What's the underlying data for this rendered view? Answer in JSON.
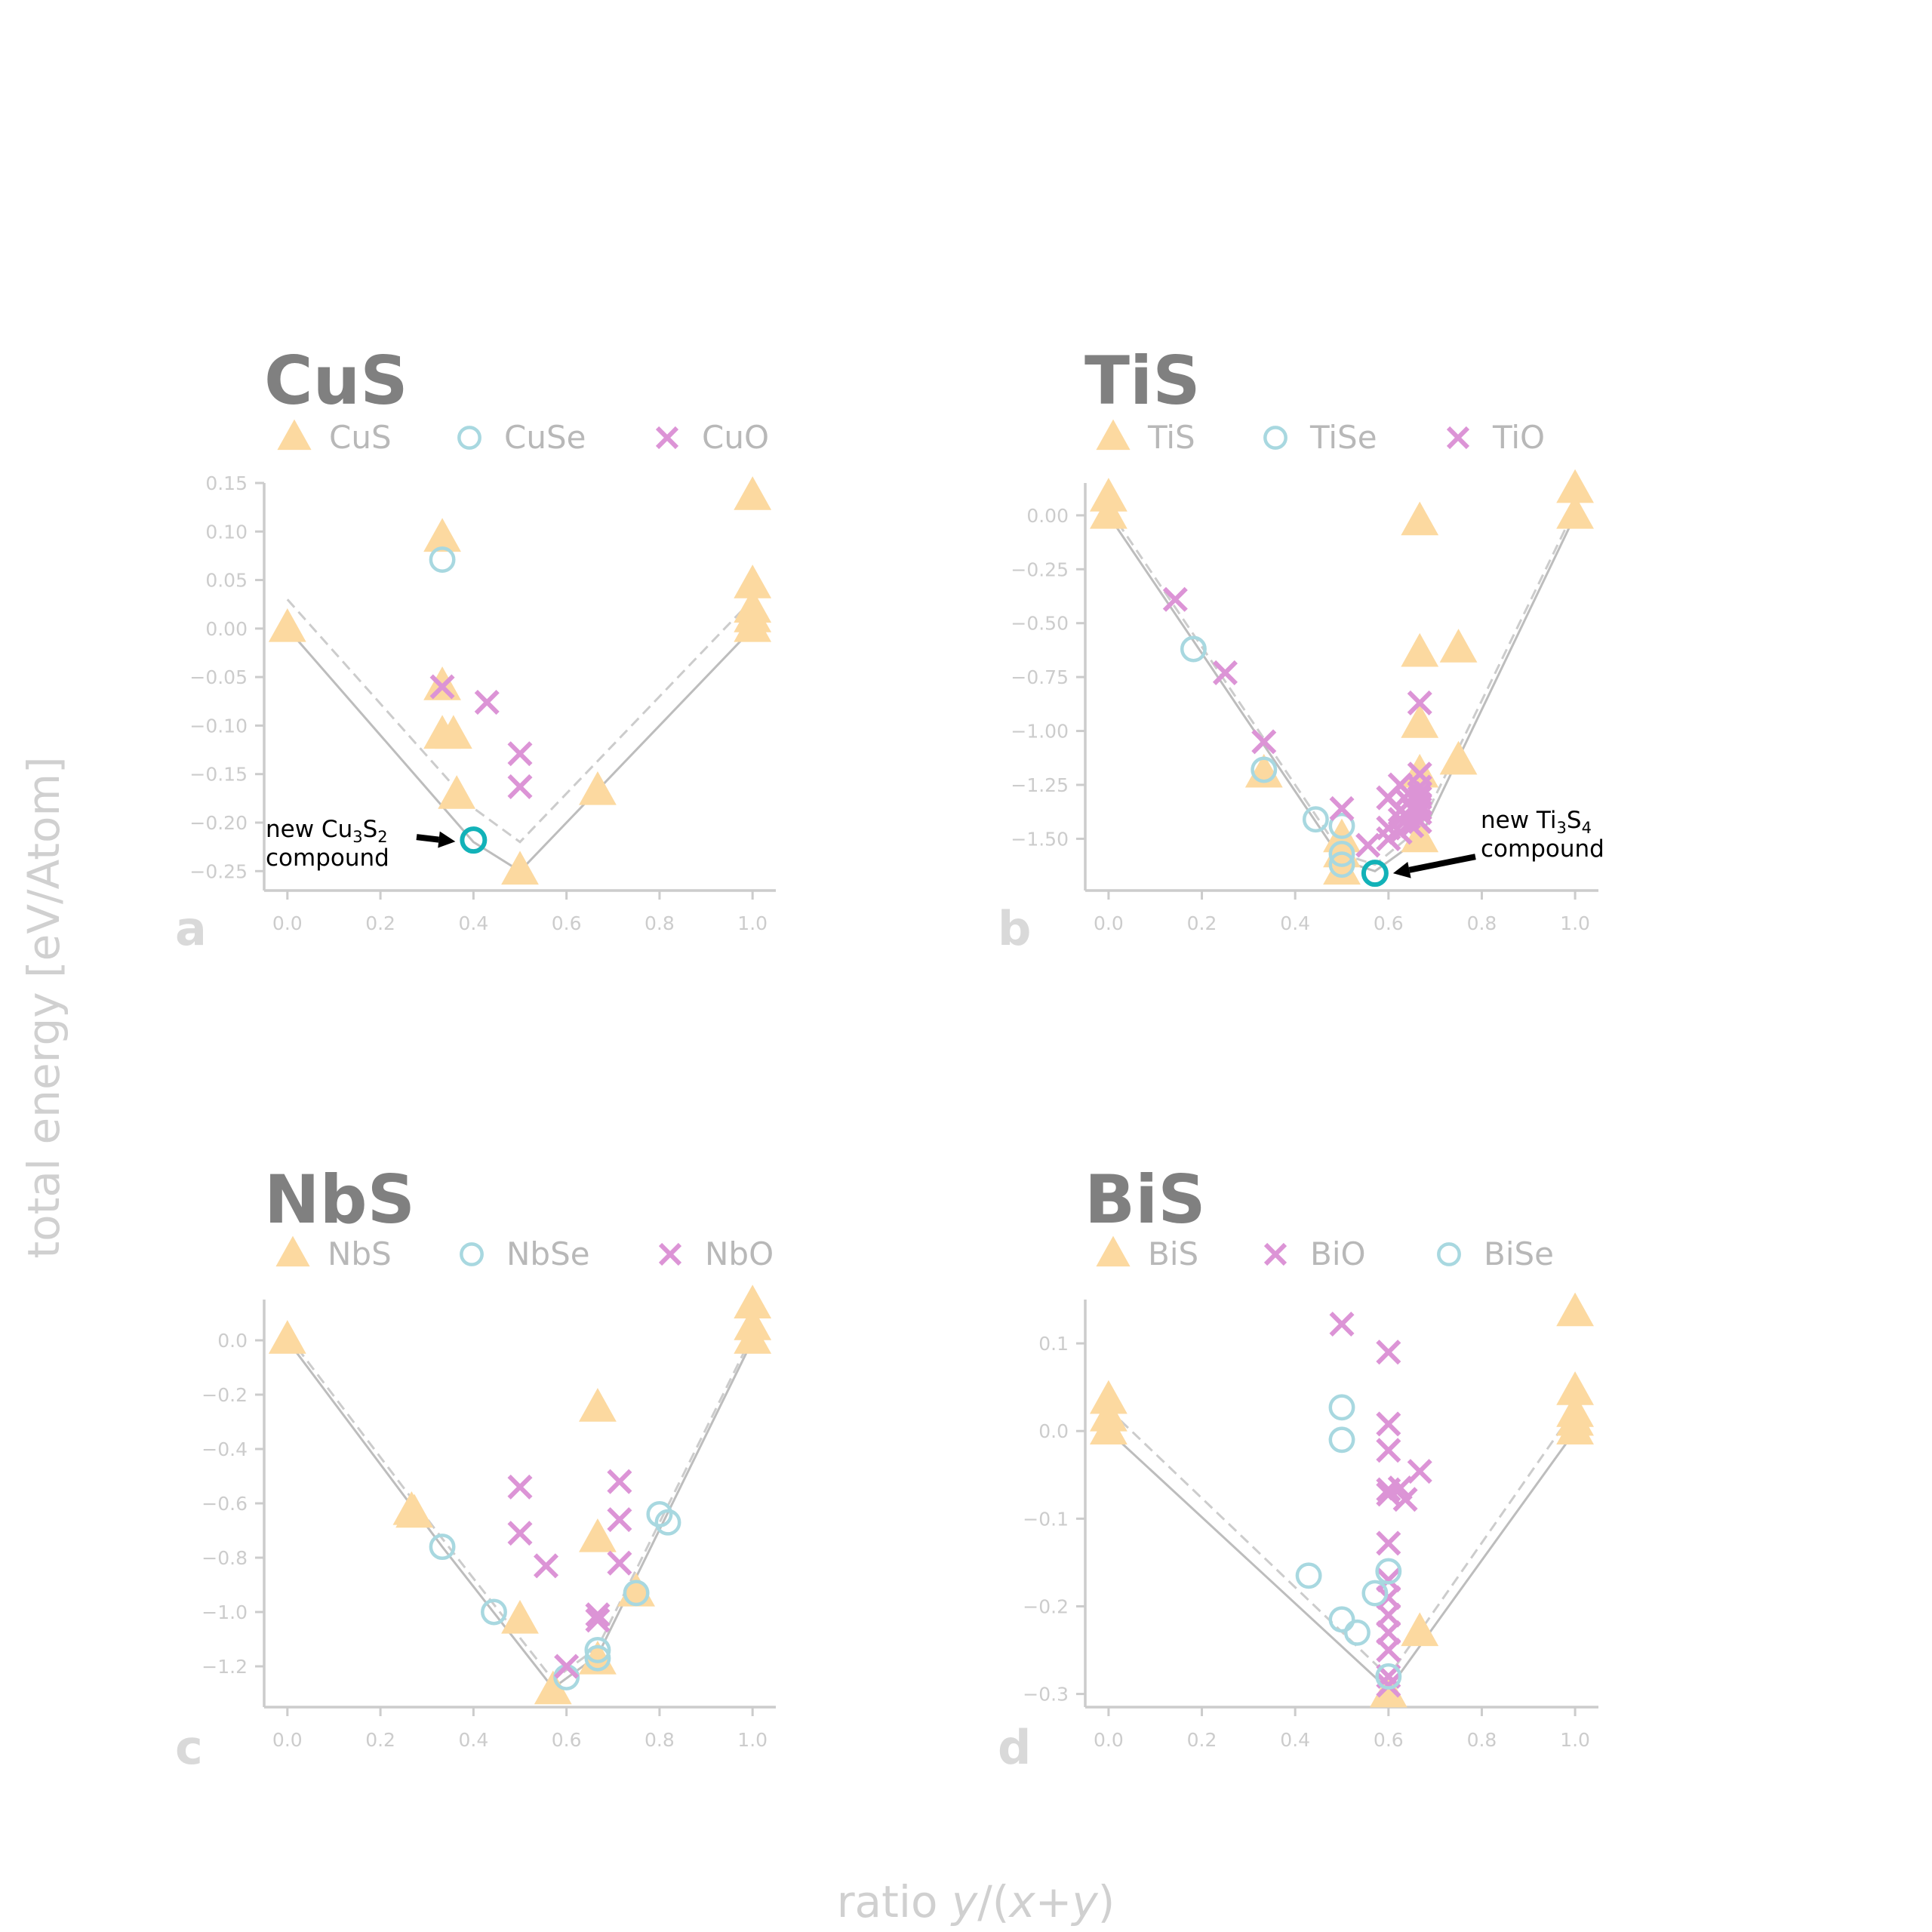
{
  "figure": {
    "ylabel": "total energy [eV/Atom]",
    "xlabel_parts": [
      "ratio ",
      "y",
      "/(",
      "x",
      "+",
      "y",
      ")"
    ]
  },
  "colors": {
    "triangle": "#fcd9a0",
    "circle": "#a8d8e0",
    "cross": "#dc94d6",
    "hull_solid": "#bdbdbd",
    "hull_dashed": "#cccccc",
    "highlight": "#12b2b8",
    "axis": "#cccccc"
  },
  "chart_data": [
    {
      "type": "scatter",
      "title": "CuS",
      "panel_letter": "a",
      "legend": [
        {
          "label": "CuS",
          "marker": "triangle"
        },
        {
          "label": "CuSe",
          "marker": "circle"
        },
        {
          "label": "CuO",
          "marker": "cross"
        }
      ],
      "xlim": [
        -0.05,
        1.05
      ],
      "ylim": [
        -0.27,
        0.15
      ],
      "xticks": [
        0.0,
        0.2,
        0.4,
        0.6,
        0.8,
        1.0
      ],
      "xtick_labels": [
        "0.0",
        "0.2",
        "0.4",
        "0.6",
        "0.8",
        "1.0"
      ],
      "yticks": [
        0.15,
        0.1,
        0.05,
        0.0,
        -0.05,
        -0.1,
        -0.15,
        -0.2,
        -0.25
      ],
      "ytick_labels": [
        "0.15",
        "0.10",
        "0.05",
        "0.00",
        "−0.05",
        "−0.10",
        "−0.15",
        "−0.20",
        "−0.25"
      ],
      "hull_solid": [
        [
          0.0,
          0.0
        ],
        [
          0.4,
          -0.22
        ],
        [
          0.5,
          -0.25
        ],
        [
          1.0,
          0.0
        ]
      ],
      "hull_dashed": [
        [
          0.0,
          0.03
        ],
        [
          0.4,
          -0.185
        ],
        [
          0.5,
          -0.22
        ],
        [
          1.0,
          0.03
        ]
      ],
      "series": [
        {
          "name": "CuS",
          "marker": "triangle",
          "points": [
            [
              0.0,
              0.0
            ],
            [
              0.333,
              0.093
            ],
            [
              0.333,
              -0.06
            ],
            [
              0.333,
              -0.11
            ],
            [
              0.357,
              -0.11
            ],
            [
              0.364,
              -0.172
            ],
            [
              0.5,
              -0.25
            ],
            [
              0.667,
              -0.168
            ],
            [
              1.0,
              0.136
            ],
            [
              1.0,
              0.045
            ],
            [
              1.0,
              0.02
            ],
            [
              1.0,
              0.01
            ],
            [
              1.0,
              0.0
            ]
          ]
        },
        {
          "name": "CuSe",
          "marker": "circle",
          "points": [
            [
              0.333,
              0.071
            ]
          ]
        },
        {
          "name": "CuO",
          "marker": "cross",
          "points": [
            [
              0.333,
              -0.06
            ],
            [
              0.429,
              -0.076
            ],
            [
              0.5,
              -0.129
            ],
            [
              0.5,
              -0.163
            ]
          ]
        }
      ],
      "highlight": {
        "point": [
          0.4,
          -0.218
        ]
      },
      "annotation": {
        "text_line1": "new Cu",
        "sub1": "3",
        "text_mid": "S",
        "sub2": "2",
        "text_line2": "compound"
      }
    },
    {
      "type": "scatter",
      "title": "TiS",
      "panel_letter": "b",
      "legend": [
        {
          "label": "TiS",
          "marker": "triangle"
        },
        {
          "label": "TiSe",
          "marker": "circle"
        },
        {
          "label": "TiO",
          "marker": "cross"
        }
      ],
      "xlim": [
        -0.05,
        1.05
      ],
      "ylim": [
        -1.74,
        0.15
      ],
      "xticks": [
        0.0,
        0.2,
        0.4,
        0.6,
        0.8,
        1.0
      ],
      "xtick_labels": [
        "0.0",
        "0.2",
        "0.4",
        "0.6",
        "0.8",
        "1.0"
      ],
      "yticks": [
        0.0,
        -0.25,
        -0.5,
        -0.75,
        -1.0,
        -1.25,
        -1.5
      ],
      "ytick_labels": [
        "0.00",
        "−0.25",
        "−0.50",
        "−0.75",
        "−1.00",
        "−1.25",
        "−1.50"
      ],
      "hull_solid": [
        [
          0.0,
          0.0
        ],
        [
          0.5,
          -1.6
        ],
        [
          0.571,
          -1.65
        ],
        [
          0.667,
          -1.5
        ],
        [
          1.0,
          0.0
        ]
      ],
      "hull_dashed": [
        [
          0.0,
          0.03
        ],
        [
          0.5,
          -1.57
        ],
        [
          0.571,
          -1.62
        ],
        [
          0.667,
          -1.45
        ],
        [
          1.0,
          0.03
        ]
      ],
      "series": [
        {
          "name": "TiS",
          "marker": "triangle",
          "points": [
            [
              0.0,
              0.08
            ],
            [
              0.0,
              0.0
            ],
            [
              0.333,
              -1.2
            ],
            [
              0.5,
              -1.5
            ],
            [
              0.5,
              -1.57
            ],
            [
              0.5,
              -1.65
            ],
            [
              0.667,
              -0.03
            ],
            [
              0.667,
              -0.64
            ],
            [
              0.667,
              -0.97
            ],
            [
              0.667,
              -1.2
            ],
            [
              0.667,
              -1.5
            ],
            [
              0.75,
              -0.62
            ],
            [
              0.75,
              -1.14
            ],
            [
              1.0,
              0.12
            ],
            [
              1.0,
              0.0
            ]
          ]
        },
        {
          "name": "TiSe",
          "marker": "circle",
          "points": [
            [
              0.182,
              -0.62
            ],
            [
              0.333,
              -1.18
            ],
            [
              0.444,
              -1.41
            ],
            [
              0.5,
              -1.44
            ],
            [
              0.5,
              -1.57
            ],
            [
              0.5,
              -1.62
            ]
          ]
        },
        {
          "name": "TiO",
          "marker": "cross",
          "points": [
            [
              0.143,
              -0.39
            ],
            [
              0.25,
              -0.73
            ],
            [
              0.333,
              -1.05
            ],
            [
              0.5,
              -1.36
            ],
            [
              0.556,
              -1.53
            ],
            [
              0.6,
              -1.31
            ],
            [
              0.6,
              -1.45
            ],
            [
              0.6,
              -1.5
            ],
            [
              0.625,
              -1.25
            ],
            [
              0.625,
              -1.37
            ],
            [
              0.625,
              -1.41
            ],
            [
              0.625,
              -1.47
            ],
            [
              0.643,
              -1.29
            ],
            [
              0.643,
              -1.33
            ],
            [
              0.643,
              -1.4
            ],
            [
              0.65,
              -1.36
            ],
            [
              0.65,
              -1.44
            ],
            [
              0.667,
              -0.87
            ],
            [
              0.667,
              -1.2
            ],
            [
              0.667,
              -1.26
            ],
            [
              0.667,
              -1.29
            ],
            [
              0.667,
              -1.31
            ],
            [
              0.667,
              -1.34
            ],
            [
              0.667,
              -1.36
            ],
            [
              0.667,
              -1.38
            ],
            [
              0.667,
              -1.42
            ]
          ]
        }
      ],
      "highlight": {
        "point": [
          0.571,
          -1.66
        ]
      },
      "annotation": {
        "text_line1": "new Ti",
        "sub1": "3",
        "text_mid": "S",
        "sub2": "4",
        "text_line2": "compound"
      }
    },
    {
      "type": "scatter",
      "title": "NbS",
      "panel_letter": "c",
      "legend": [
        {
          "label": "NbS",
          "marker": "triangle"
        },
        {
          "label": "NbSe",
          "marker": "circle"
        },
        {
          "label": "NbO",
          "marker": "cross"
        }
      ],
      "xlim": [
        -0.05,
        1.05
      ],
      "ylim": [
        -1.35,
        0.15
      ],
      "xticks": [
        0.0,
        0.2,
        0.4,
        0.6,
        0.8,
        1.0
      ],
      "xtick_labels": [
        "0.0",
        "0.2",
        "0.4",
        "0.6",
        "0.8",
        "1.0"
      ],
      "yticks": [
        0.0,
        -0.2,
        -0.4,
        -0.6,
        -0.8,
        -1.0,
        -1.2
      ],
      "ytick_labels": [
        "0.0",
        "−0.2",
        "−0.4",
        "−0.6",
        "−0.8",
        "−1.0",
        "−1.2"
      ],
      "hull_solid": [
        [
          0.0,
          0.0
        ],
        [
          0.333,
          -0.76
        ],
        [
          0.571,
          -1.28
        ],
        [
          0.667,
          -1.16
        ],
        [
          1.0,
          0.0
        ]
      ],
      "hull_dashed": [
        [
          0.0,
          0.02
        ],
        [
          0.333,
          -0.73
        ],
        [
          0.571,
          -1.25
        ],
        [
          0.667,
          -1.13
        ],
        [
          1.0,
          0.02
        ]
      ],
      "series": [
        {
          "name": "NbS",
          "marker": "triangle",
          "points": [
            [
              0.0,
              0.0
            ],
            [
              0.267,
              -0.63
            ],
            [
              0.273,
              -0.64
            ],
            [
              0.5,
              -1.03
            ],
            [
              0.571,
              -1.29
            ],
            [
              0.667,
              -0.25
            ],
            [
              0.667,
              -0.73
            ],
            [
              0.667,
              -1.18
            ],
            [
              0.75,
              -0.93
            ],
            [
              1.0,
              0.13
            ],
            [
              1.0,
              0.05
            ],
            [
              1.0,
              0.0
            ]
          ]
        },
        {
          "name": "NbSe",
          "marker": "circle",
          "points": [
            [
              0.333,
              -0.76
            ],
            [
              0.444,
              -1.0
            ],
            [
              0.6,
              -1.24
            ],
            [
              0.667,
              -1.14
            ],
            [
              0.667,
              -1.17
            ],
            [
              0.75,
              -0.93
            ],
            [
              0.8,
              -0.64
            ],
            [
              0.818,
              -0.67
            ]
          ]
        },
        {
          "name": "NbO",
          "marker": "cross",
          "points": [
            [
              0.5,
              -0.54
            ],
            [
              0.5,
              -0.71
            ],
            [
              0.556,
              -0.83
            ],
            [
              0.6,
              -1.2
            ],
            [
              0.667,
              -1.01
            ],
            [
              0.667,
              -1.03
            ],
            [
              0.714,
              -0.52
            ],
            [
              0.714,
              -0.66
            ],
            [
              0.714,
              -0.82
            ]
          ]
        }
      ]
    },
    {
      "type": "scatter",
      "title": "BiS",
      "panel_letter": "d",
      "legend": [
        {
          "label": "BiS",
          "marker": "triangle"
        },
        {
          "label": "BiO",
          "marker": "cross"
        },
        {
          "label": "BiSe",
          "marker": "circle"
        }
      ],
      "xlim": [
        -0.05,
        1.05
      ],
      "ylim": [
        -0.315,
        0.15
      ],
      "xticks": [
        0.0,
        0.2,
        0.4,
        0.6,
        0.8,
        1.0
      ],
      "xtick_labels": [
        "0.0",
        "0.2",
        "0.4",
        "0.6",
        "0.8",
        "1.0"
      ],
      "yticks": [
        0.1,
        0.0,
        -0.1,
        -0.2,
        -0.3
      ],
      "ytick_labels": [
        "0.1",
        "0.0",
        "−0.1",
        "−0.2",
        "−0.3"
      ],
      "hull_solid": [
        [
          0.0,
          0.0
        ],
        [
          0.6,
          -0.295
        ],
        [
          1.0,
          0.0
        ]
      ],
      "hull_dashed": [
        [
          0.0,
          0.025
        ],
        [
          0.6,
          -0.28
        ],
        [
          1.0,
          0.025
        ]
      ],
      "series": [
        {
          "name": "BiS",
          "marker": "triangle",
          "points": [
            [
              0.0,
              0.035
            ],
            [
              0.0,
              0.015
            ],
            [
              0.0,
              0.0
            ],
            [
              0.6,
              -0.3
            ],
            [
              0.667,
              -0.23
            ],
            [
              1.0,
              0.135
            ],
            [
              1.0,
              0.045
            ],
            [
              1.0,
              0.02
            ],
            [
              1.0,
              0.01
            ],
            [
              1.0,
              0.0
            ]
          ]
        },
        {
          "name": "BiO",
          "marker": "cross",
          "points": [
            [
              0.5,
              0.122
            ],
            [
              0.6,
              0.09
            ],
            [
              0.6,
              0.008
            ],
            [
              0.6,
              -0.022
            ],
            [
              0.6,
              -0.067
            ],
            [
              0.6,
              -0.072
            ],
            [
              0.6,
              -0.128
            ],
            [
              0.6,
              -0.17
            ],
            [
              0.6,
              -0.19
            ],
            [
              0.6,
              -0.21
            ],
            [
              0.6,
              -0.23
            ],
            [
              0.6,
              -0.25
            ],
            [
              0.6,
              -0.28
            ],
            [
              0.6,
              -0.29
            ],
            [
              0.625,
              -0.065
            ],
            [
              0.636,
              -0.078
            ],
            [
              0.667,
              -0.046
            ]
          ]
        },
        {
          "name": "BiSe",
          "marker": "circle",
          "points": [
            [
              0.429,
              -0.165
            ],
            [
              0.5,
              0.027
            ],
            [
              0.5,
              -0.01
            ],
            [
              0.5,
              -0.215
            ],
            [
              0.533,
              -0.23
            ],
            [
              0.571,
              -0.185
            ],
            [
              0.6,
              -0.16
            ],
            [
              0.6,
              -0.28
            ]
          ]
        }
      ]
    }
  ]
}
